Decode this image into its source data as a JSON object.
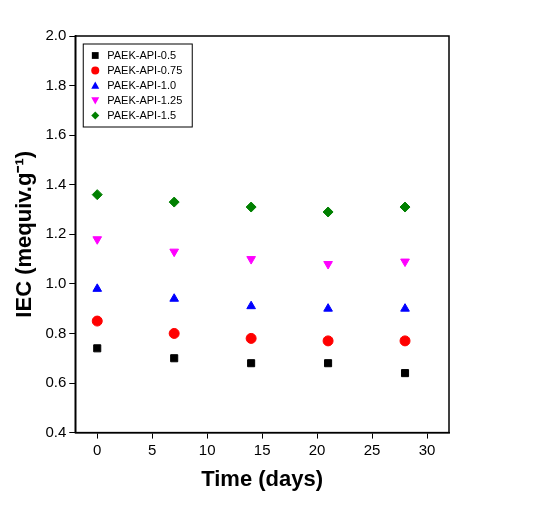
{
  "chart_data": {
    "type": "scatter",
    "x_label": "Time (days)",
    "y_label": "IEC (mequiv.g⁻¹)",
    "xlim": [
      -2,
      32
    ],
    "xticks": [
      0,
      5,
      10,
      15,
      20,
      25,
      30
    ],
    "ylim": [
      0.4,
      2.0
    ],
    "yticks": [
      0.4,
      0.6,
      0.8,
      {
        "value": 1,
        "label": "1.0"
      },
      1.2,
      1.4,
      1.6,
      1.8,
      {
        "value": 2,
        "label": "2.0"
      }
    ],
    "grid": false,
    "legend": "top-left",
    "x": [
      0,
      7,
      14,
      21,
      28
    ],
    "series": [
      {
        "name": "PAEK-API-0.5",
        "color": "#000000",
        "marker": "square",
        "values": [
          0.74,
          0.7,
          0.68,
          0.68,
          0.64
        ]
      },
      {
        "name": "PAEK-API-0.75",
        "color": "#ff0000",
        "marker": "circle",
        "values": [
          0.85,
          0.8,
          0.78,
          0.77,
          0.77
        ]
      },
      {
        "name": "PAEK-API-1.0",
        "color": "#0000ff",
        "marker": "triangle-up",
        "values": [
          0.98,
          0.94,
          0.91,
          0.9,
          0.9
        ]
      },
      {
        "name": "PAEK-API-1.25",
        "color": "#ff00ff",
        "marker": "triangle-down",
        "values": [
          1.18,
          1.13,
          1.1,
          1.08,
          1.09
        ]
      },
      {
        "name": "PAEK-API-1.5",
        "color": "#008000",
        "marker": "diamond",
        "values": [
          1.36,
          1.33,
          1.31,
          1.29,
          1.31
        ]
      }
    ]
  }
}
